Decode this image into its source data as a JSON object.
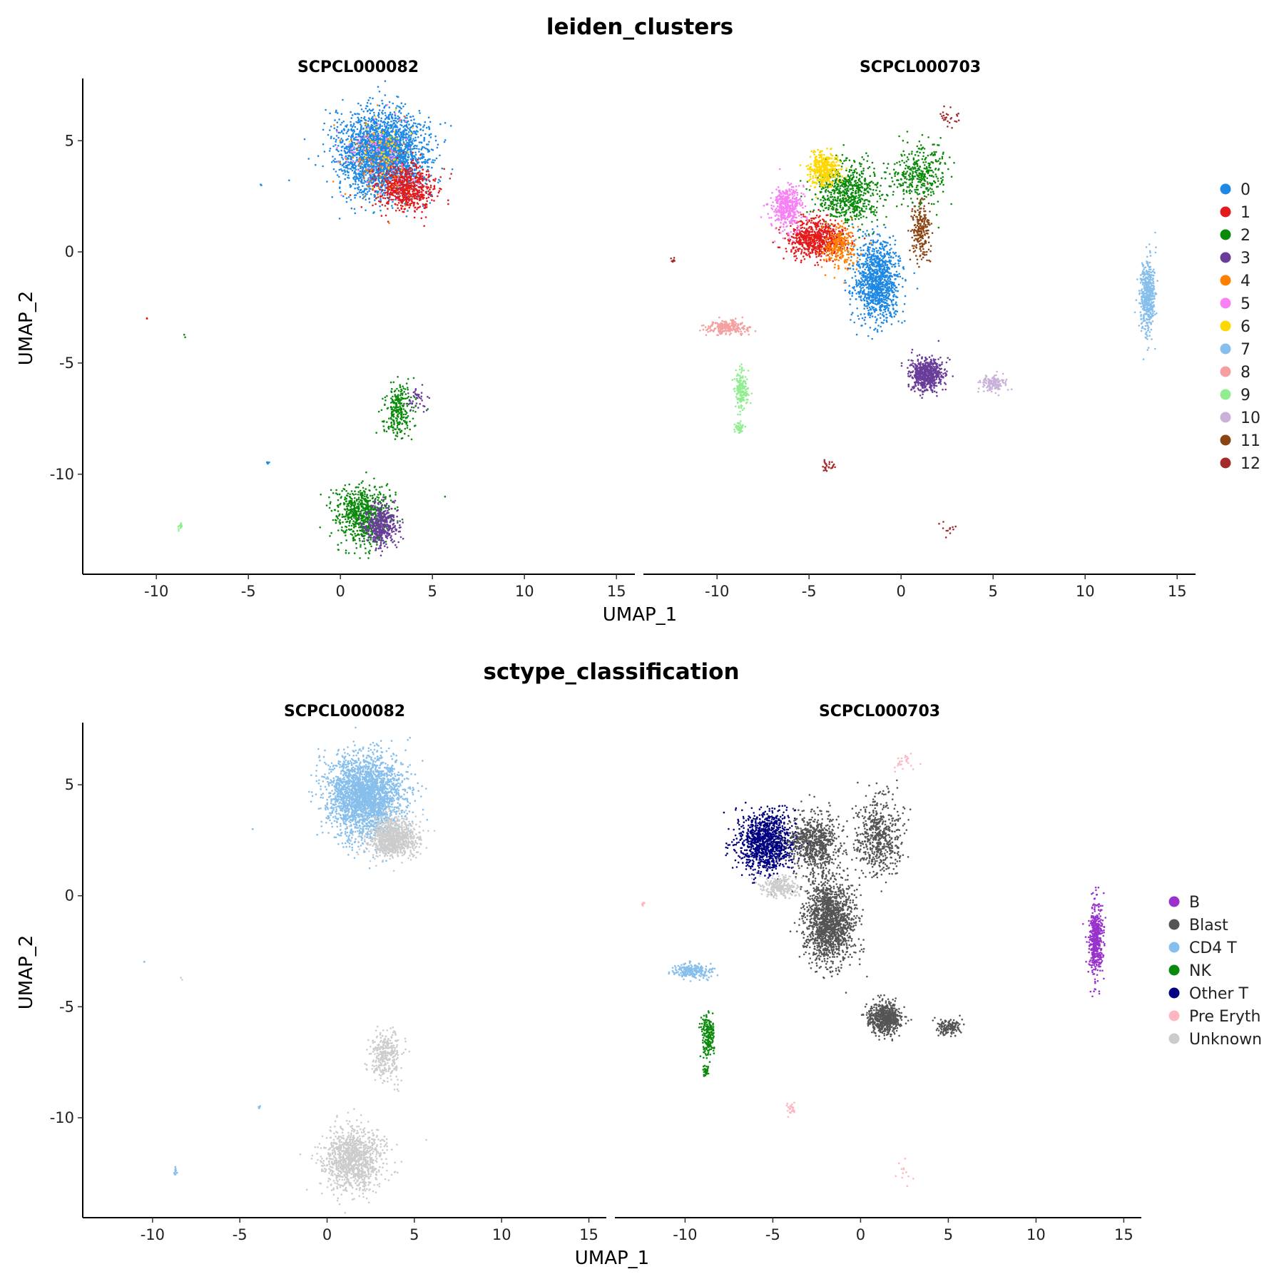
{
  "colors": {
    "leiden": {
      "0": "#1e88e5",
      "1": "#e31a1c",
      "2": "#0a8a0a",
      "3": "#6a3d9a",
      "4": "#ff7f00",
      "5": "#f781f5",
      "6": "#ffd700",
      "7": "#87bfec",
      "8": "#f5a0a0",
      "9": "#90ee90",
      "10": "#c9b1d8",
      "11": "#8b4513",
      "12": "#a52a2a"
    },
    "sctype": {
      "B": "#9932cc",
      "Blast": "#555555",
      "CD4 T": "#87bfec",
      "NK": "#0a8a0a",
      "Other T": "#000080",
      "Pre Eryth": "#ffb6c1",
      "Unknown": "#cccccc"
    }
  },
  "chart_data": [
    {
      "type": "scatter",
      "title": "leiden_clusters",
      "xlabel": "UMAP_1",
      "ylabel": "UMAP_2",
      "facets": [
        "SCPCL000082",
        "SCPCL000703"
      ],
      "xlim": [
        -14,
        16
      ],
      "ylim": [
        -14.5,
        7.8
      ],
      "xticks": [
        -10,
        -5,
        0,
        5,
        10,
        15
      ],
      "yticks": [
        5,
        0,
        -5,
        -10
      ],
      "legend_title": "",
      "legend": [
        "0",
        "1",
        "2",
        "3",
        "4",
        "5",
        "6",
        "7",
        "8",
        "9",
        "10",
        "11",
        "12"
      ],
      "legend_position": "right",
      "grid": false,
      "clusters": {
        "SCPCL000082": [
          {
            "label": "0",
            "cx": 2.3,
            "cy": 4.4,
            "rx": 2.3,
            "ry": 1.9,
            "n": 2600
          },
          {
            "label": "1",
            "cx": 3.6,
            "cy": 2.9,
            "rx": 1.6,
            "ry": 1.1,
            "n": 650
          },
          {
            "label": "4",
            "cx": 1.8,
            "cy": 4.0,
            "rx": 1.8,
            "ry": 1.6,
            "n": 90
          },
          {
            "label": "5",
            "cx": 2.0,
            "cy": 4.5,
            "rx": 1.8,
            "ry": 1.6,
            "n": 90
          },
          {
            "label": "6",
            "cx": 2.5,
            "cy": 4.8,
            "rx": 1.6,
            "ry": 1.3,
            "n": 60
          },
          {
            "label": "2",
            "cx": 3.2,
            "cy": -7.2,
            "rx": 0.8,
            "ry": 1.1,
            "n": 260
          },
          {
            "label": "3",
            "cx": 4.2,
            "cy": -6.6,
            "rx": 0.6,
            "ry": 0.6,
            "n": 40
          },
          {
            "label": "2",
            "cx": 1.2,
            "cy": -11.8,
            "rx": 1.5,
            "ry": 1.3,
            "n": 700
          },
          {
            "label": "3",
            "cx": 2.2,
            "cy": -12.3,
            "rx": 0.9,
            "ry": 0.9,
            "n": 420
          },
          {
            "label": "9",
            "cx": -8.7,
            "cy": -12.4,
            "rx": 0.15,
            "ry": 0.2,
            "n": 12
          },
          {
            "label": "0",
            "cx": -3.9,
            "cy": -9.5,
            "rx": 0.08,
            "ry": 0.08,
            "n": 5
          },
          {
            "label": "0",
            "cx": -4.3,
            "cy": 3.0,
            "rx": 0.05,
            "ry": 0.05,
            "n": 2
          },
          {
            "label": "1",
            "cx": -10.5,
            "cy": -3.0,
            "rx": 0.05,
            "ry": 0.05,
            "n": 2
          },
          {
            "label": "2",
            "cx": -8.4,
            "cy": -3.8,
            "rx": 0.1,
            "ry": 0.1,
            "n": 2
          },
          {
            "label": "2",
            "cx": 5.7,
            "cy": -11.0,
            "rx": 0.05,
            "ry": 0.05,
            "n": 1
          }
        ],
        "SCPCL000703": [
          {
            "label": "0",
            "cx": -1.3,
            "cy": -1.3,
            "rx": 1.2,
            "ry": 1.8,
            "n": 1100
          },
          {
            "label": "1",
            "cx": -4.6,
            "cy": 0.6,
            "rx": 1.6,
            "ry": 0.9,
            "n": 700
          },
          {
            "label": "2",
            "cx": -2.9,
            "cy": 2.6,
            "rx": 1.8,
            "ry": 1.4,
            "n": 650
          },
          {
            "label": "2",
            "cx": 1.0,
            "cy": 3.4,
            "rx": 1.4,
            "ry": 1.4,
            "n": 350
          },
          {
            "label": "3",
            "cx": 1.4,
            "cy": -5.5,
            "rx": 0.9,
            "ry": 0.7,
            "n": 650
          },
          {
            "label": "4",
            "cx": -3.3,
            "cy": 0.3,
            "rx": 1.0,
            "ry": 1.0,
            "n": 260
          },
          {
            "label": "5",
            "cx": -6.2,
            "cy": 2.0,
            "rx": 0.8,
            "ry": 1.0,
            "n": 450
          },
          {
            "label": "6",
            "cx": -4.2,
            "cy": 3.7,
            "rx": 0.8,
            "ry": 0.8,
            "n": 400
          },
          {
            "label": "7",
            "cx": 13.4,
            "cy": -2.0,
            "rx": 0.4,
            "ry": 1.6,
            "n": 500
          },
          {
            "label": "8",
            "cx": -9.5,
            "cy": -3.4,
            "rx": 1.1,
            "ry": 0.3,
            "n": 230
          },
          {
            "label": "9",
            "cx": -8.7,
            "cy": -6.3,
            "rx": 0.35,
            "ry": 0.9,
            "n": 180
          },
          {
            "label": "9",
            "cx": -8.8,
            "cy": -7.9,
            "rx": 0.2,
            "ry": 0.25,
            "n": 40
          },
          {
            "label": "10",
            "cx": 5.0,
            "cy": -5.9,
            "rx": 0.7,
            "ry": 0.4,
            "n": 140
          },
          {
            "label": "11",
            "cx": 1.1,
            "cy": 0.9,
            "rx": 0.5,
            "ry": 1.2,
            "n": 220
          },
          {
            "label": "12",
            "cx": -12.4,
            "cy": -0.4,
            "rx": 0.1,
            "ry": 0.1,
            "n": 10
          },
          {
            "label": "12",
            "cx": -4.0,
            "cy": -9.6,
            "rx": 0.3,
            "ry": 0.3,
            "n": 25
          },
          {
            "label": "12",
            "cx": 2.5,
            "cy": 6.0,
            "rx": 0.7,
            "ry": 0.4,
            "n": 25
          },
          {
            "label": "12",
            "cx": 2.5,
            "cy": -12.5,
            "rx": 0.5,
            "ry": 0.6,
            "n": 12
          }
        ]
      }
    },
    {
      "type": "scatter",
      "title": "sctype_classification",
      "xlabel": "UMAP_1",
      "ylabel": "UMAP_2",
      "facets": [
        "SCPCL000082",
        "SCPCL000703"
      ],
      "xlim": [
        -14,
        16
      ],
      "ylim": [
        -14.5,
        7.8
      ],
      "xticks": [
        -10,
        -5,
        0,
        5,
        10,
        15
      ],
      "yticks": [
        5,
        0,
        -5,
        -10
      ],
      "legend_title": "",
      "legend": [
        "B",
        "Blast",
        "CD4 T",
        "NK",
        "Other T",
        "Pre Eryth",
        "Unknown"
      ],
      "legend_position": "right",
      "grid": false,
      "clusters": {
        "SCPCL000082": [
          {
            "label": "CD4 T",
            "cx": 2.2,
            "cy": 4.5,
            "rx": 2.1,
            "ry": 1.8,
            "n": 2600
          },
          {
            "label": "Unknown",
            "cx": 3.8,
            "cy": 2.6,
            "rx": 1.4,
            "ry": 0.9,
            "n": 900
          },
          {
            "label": "Unknown",
            "cx": 3.3,
            "cy": -7.2,
            "rx": 0.9,
            "ry": 1.2,
            "n": 300
          },
          {
            "label": "Unknown",
            "cx": 1.5,
            "cy": -11.9,
            "rx": 1.7,
            "ry": 1.4,
            "n": 1100
          },
          {
            "label": "CD4 T",
            "cx": -8.7,
            "cy": -12.4,
            "rx": 0.15,
            "ry": 0.2,
            "n": 12
          },
          {
            "label": "CD4 T",
            "cx": -3.9,
            "cy": -9.5,
            "rx": 0.08,
            "ry": 0.08,
            "n": 5
          },
          {
            "label": "CD4 T",
            "cx": -4.3,
            "cy": 3.0,
            "rx": 0.05,
            "ry": 0.05,
            "n": 2
          },
          {
            "label": "CD4 T",
            "cx": -10.5,
            "cy": -3.0,
            "rx": 0.05,
            "ry": 0.05,
            "n": 2
          },
          {
            "label": "Unknown",
            "cx": -8.4,
            "cy": -3.8,
            "rx": 0.1,
            "ry": 0.1,
            "n": 2
          },
          {
            "label": "Unknown",
            "cx": 5.7,
            "cy": -11.0,
            "rx": 0.05,
            "ry": 0.05,
            "n": 1
          }
        ],
        "SCPCL000703": [
          {
            "label": "Other T",
            "cx": -5.4,
            "cy": 2.4,
            "rx": 1.6,
            "ry": 1.3,
            "n": 1100
          },
          {
            "label": "Unknown",
            "cx": -4.6,
            "cy": 0.4,
            "rx": 1.1,
            "ry": 0.5,
            "n": 260
          },
          {
            "label": "Blast",
            "cx": -1.8,
            "cy": -1.1,
            "rx": 1.4,
            "ry": 1.9,
            "n": 1500
          },
          {
            "label": "Blast",
            "cx": -2.6,
            "cy": 2.4,
            "rx": 1.4,
            "ry": 1.3,
            "n": 700
          },
          {
            "label": "Blast",
            "cx": 1.0,
            "cy": 2.6,
            "rx": 1.3,
            "ry": 1.8,
            "n": 550
          },
          {
            "label": "Blast",
            "cx": 1.4,
            "cy": -5.5,
            "rx": 0.9,
            "ry": 0.7,
            "n": 650
          },
          {
            "label": "Blast",
            "cx": 5.0,
            "cy": -5.9,
            "rx": 0.7,
            "ry": 0.4,
            "n": 140
          },
          {
            "label": "B",
            "cx": 13.4,
            "cy": -2.0,
            "rx": 0.4,
            "ry": 1.6,
            "n": 500
          },
          {
            "label": "CD4 T",
            "cx": -9.5,
            "cy": -3.4,
            "rx": 1.1,
            "ry": 0.3,
            "n": 230
          },
          {
            "label": "NK",
            "cx": -8.7,
            "cy": -6.3,
            "rx": 0.35,
            "ry": 0.9,
            "n": 180
          },
          {
            "label": "NK",
            "cx": -8.8,
            "cy": -7.9,
            "rx": 0.2,
            "ry": 0.25,
            "n": 40
          },
          {
            "label": "Pre Eryth",
            "cx": -12.4,
            "cy": -0.4,
            "rx": 0.1,
            "ry": 0.1,
            "n": 10
          },
          {
            "label": "Pre Eryth",
            "cx": -4.0,
            "cy": -9.6,
            "rx": 0.3,
            "ry": 0.3,
            "n": 25
          },
          {
            "label": "Pre Eryth",
            "cx": 2.5,
            "cy": 6.0,
            "rx": 0.7,
            "ry": 0.4,
            "n": 25
          },
          {
            "label": "Pre Eryth",
            "cx": 2.5,
            "cy": -12.5,
            "rx": 0.5,
            "ry": 0.6,
            "n": 12
          }
        ]
      }
    }
  ]
}
